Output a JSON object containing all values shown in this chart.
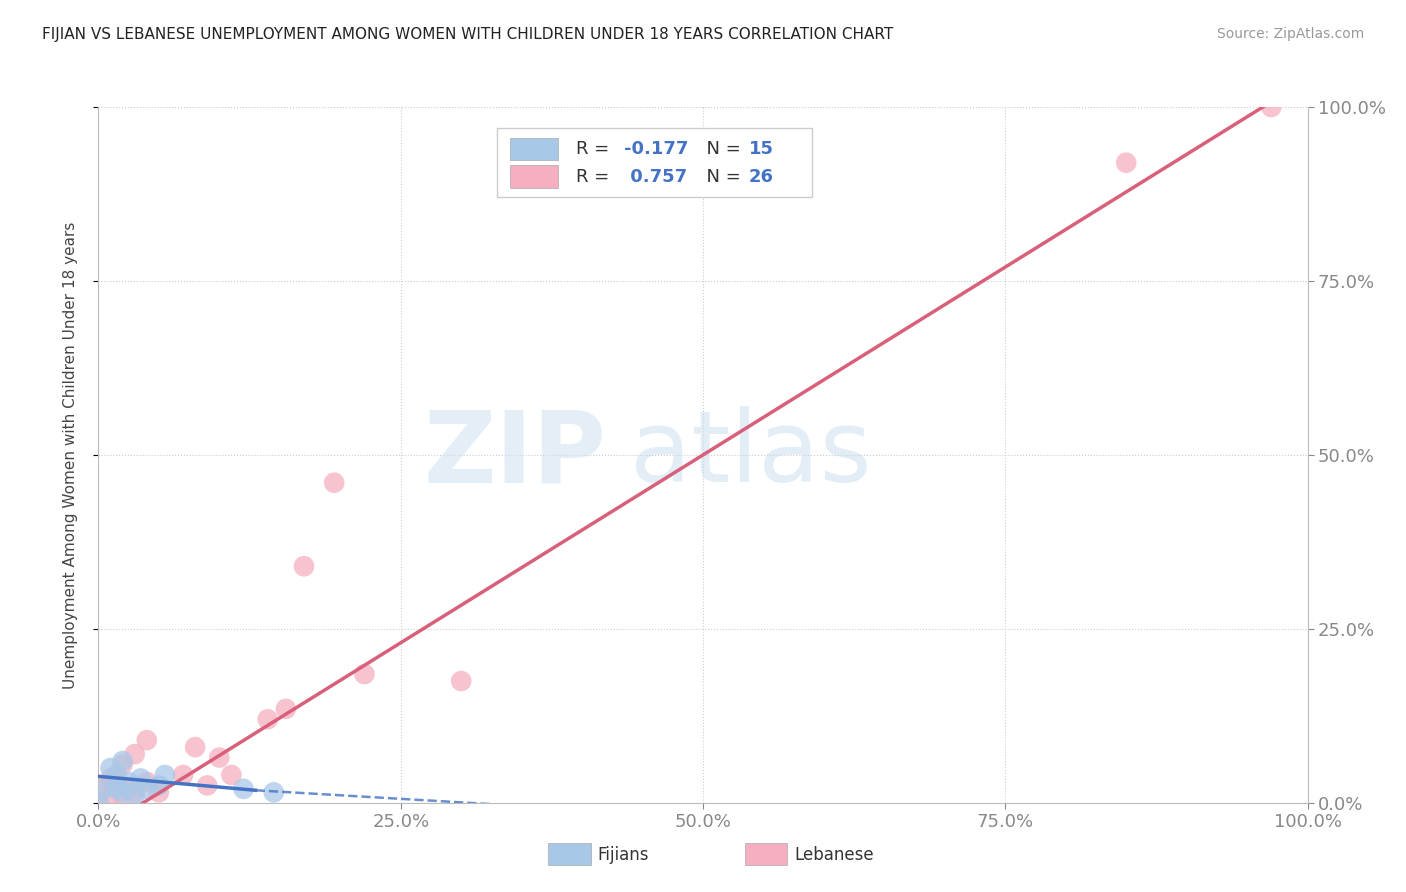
{
  "title": "FIJIAN VS LEBANESE UNEMPLOYMENT AMONG WOMEN WITH CHILDREN UNDER 18 YEARS CORRELATION CHART",
  "source": "Source: ZipAtlas.com",
  "ylabel": "Unemployment Among Women with Children Under 18 years",
  "fijian_color": "#a8c8e8",
  "lebanese_color": "#f5afc0",
  "fijian_line_color": "#4472c4",
  "lebanese_line_color": "#d9607a",
  "background_color": "#ffffff",
  "grid_color": "#cccccc",
  "watermark_zip": "ZIP",
  "watermark_atlas": "atlas",
  "legend_R_fijian": "-0.177",
  "legend_N_fijian": "15",
  "legend_R_lebanese": "0.757",
  "legend_N_lebanese": "26",
  "xlim": [
    0.0,
    1.0
  ],
  "ylim": [
    0.0,
    1.0
  ],
  "xtick_labels": [
    "0.0%",
    "25.0%",
    "50.0%",
    "75.0%",
    "100.0%"
  ],
  "xtick_vals": [
    0.0,
    0.25,
    0.5,
    0.75,
    1.0
  ],
  "ytick_labels_right": [
    "0.0%",
    "25.0%",
    "50.0%",
    "75.0%",
    "100.0%"
  ],
  "ytick_vals": [
    0.0,
    0.25,
    0.5,
    0.75,
    1.0
  ],
  "fijian_x": [
    0.0,
    0.005,
    0.01,
    0.015,
    0.015,
    0.02,
    0.02,
    0.025,
    0.03,
    0.035,
    0.04,
    0.05,
    0.055,
    0.12,
    0.145
  ],
  "fijian_y": [
    0.0,
    0.02,
    0.05,
    0.02,
    0.04,
    0.015,
    0.06,
    0.03,
    0.01,
    0.035,
    0.02,
    0.025,
    0.04,
    0.02,
    0.015
  ],
  "lebanese_x": [
    0.0,
    0.005,
    0.01,
    0.01,
    0.015,
    0.02,
    0.02,
    0.025,
    0.03,
    0.03,
    0.04,
    0.04,
    0.05,
    0.07,
    0.08,
    0.09,
    0.1,
    0.11,
    0.14,
    0.155,
    0.17,
    0.195,
    0.22,
    0.3,
    0.85,
    0.97
  ],
  "lebanese_y": [
    0.0,
    0.025,
    0.01,
    0.035,
    0.03,
    0.01,
    0.055,
    0.02,
    0.015,
    0.07,
    0.03,
    0.09,
    0.015,
    0.04,
    0.08,
    0.025,
    0.065,
    0.04,
    0.12,
    0.135,
    0.34,
    0.46,
    0.185,
    0.175,
    0.92,
    1.0
  ],
  "fijian_reg_solid": [
    0.0,
    0.038,
    0.13,
    0.018
  ],
  "fijian_reg_dash": [
    0.13,
    0.018,
    0.55,
    -0.025
  ],
  "lebanese_reg": [
    0.0,
    -0.04,
    1.0,
    1.04
  ]
}
